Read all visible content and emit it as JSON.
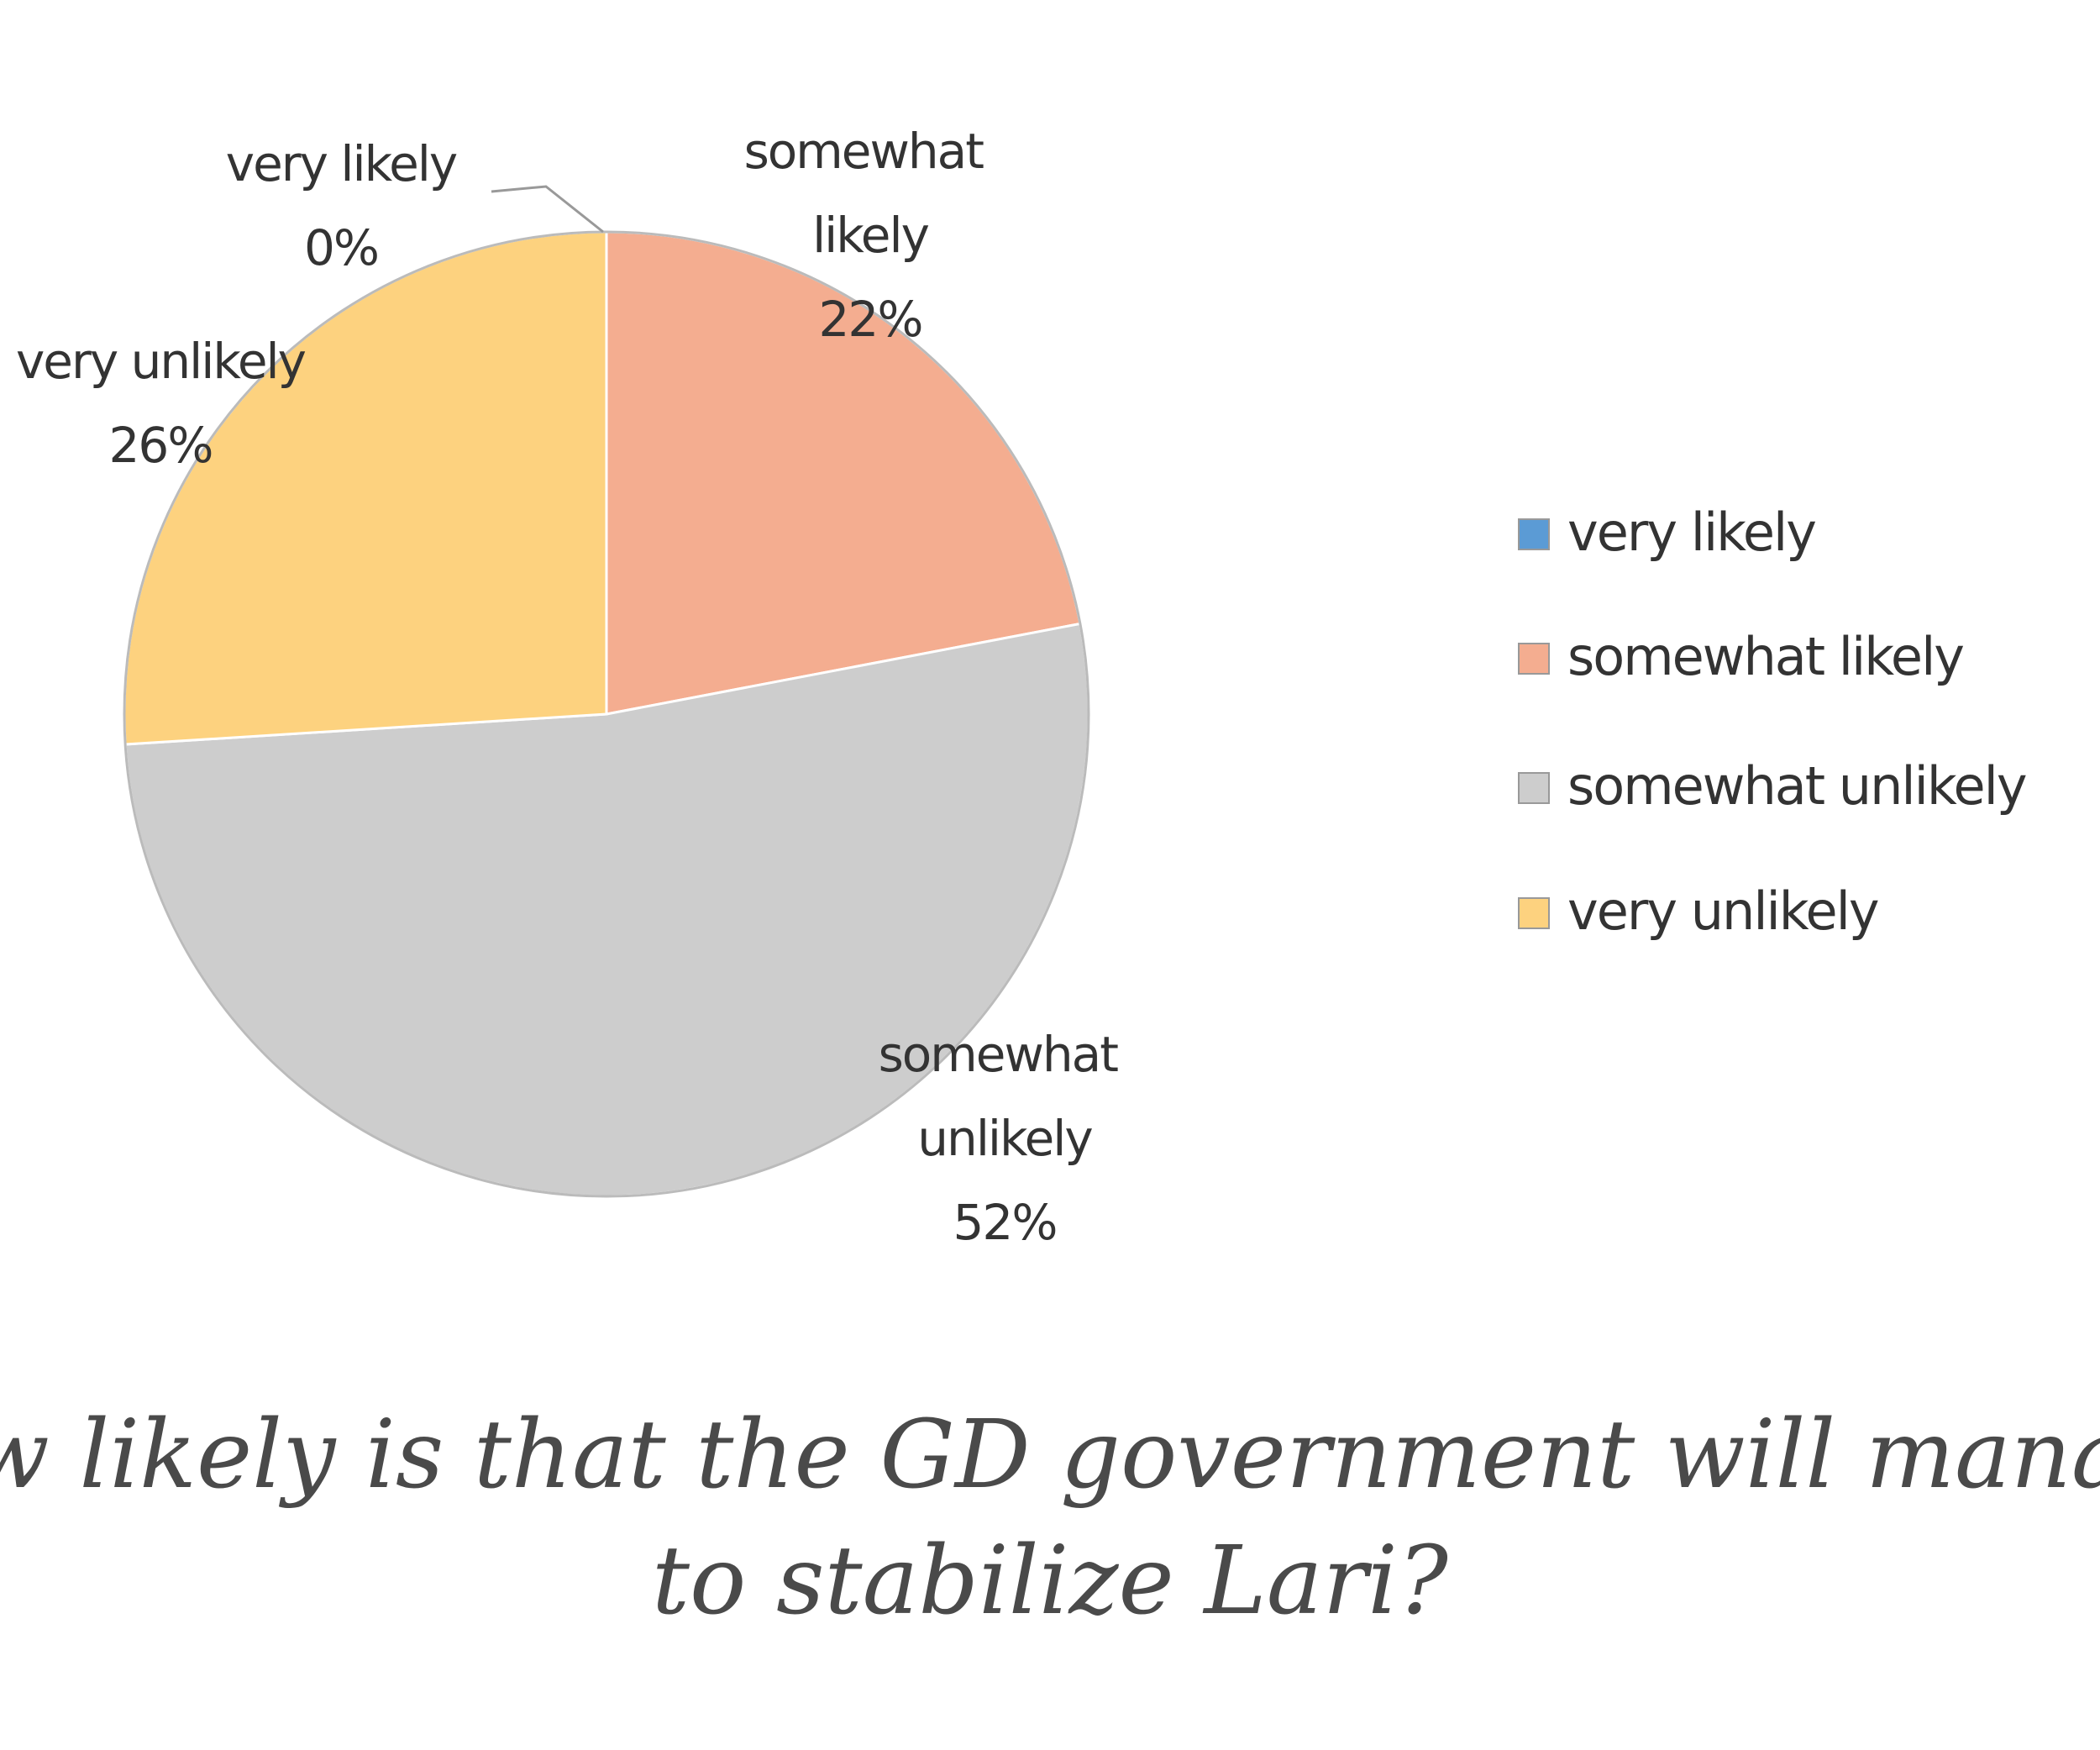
{
  "chart_data": {
    "type": "pie",
    "title": [
      "ow likely is that the GD government will manag",
      "to stabilize Lari?"
    ],
    "categories": [
      "very likely",
      "somewhat likely",
      "somewhat unlikely",
      "very unlikely"
    ],
    "values": [
      0,
      22,
      52,
      26
    ],
    "value_labels": [
      "0%",
      "22%",
      "52%",
      "26%"
    ],
    "colors": [
      "#5b9bd5",
      "#f4ad90",
      "#cdcdcd",
      "#fdd27f"
    ],
    "legend": "right"
  }
}
